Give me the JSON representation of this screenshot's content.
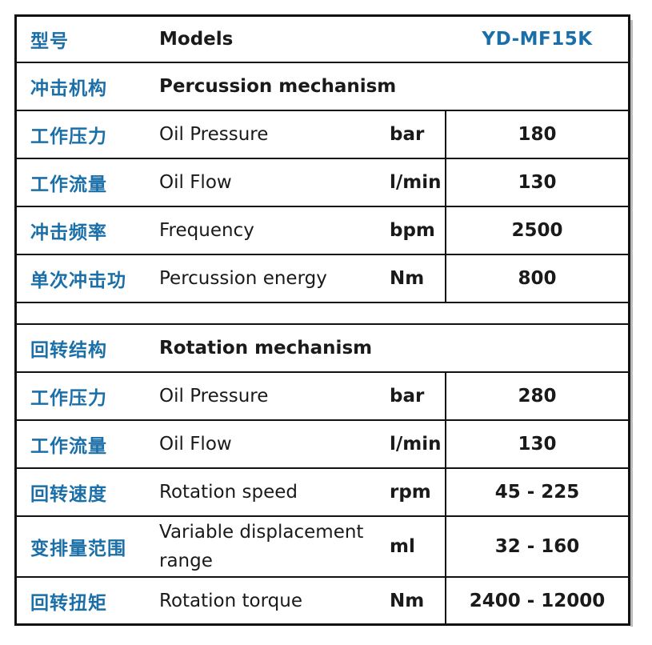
{
  "header": {
    "cn": "型号",
    "en": "Models",
    "model": "YD-MF15K"
  },
  "percussion": {
    "cn": "冲击机构",
    "en": "Percussion mechanism",
    "rows": [
      {
        "cn": "工作压力",
        "en": "Oil Pressure",
        "unit": "bar",
        "value": "180"
      },
      {
        "cn": "工作流量",
        "en": "Oil Flow",
        "unit": "l/min",
        "value": "130"
      },
      {
        "cn": "冲击频率",
        "en": "Frequency",
        "unit": "bpm",
        "value": "2500"
      },
      {
        "cn": "单次冲击功",
        "en": "Percussion energy",
        "unit": "Nm",
        "value": "800"
      }
    ]
  },
  "rotation": {
    "cn": "回转结构",
    "en": "Rotation mechanism",
    "rows": [
      {
        "cn": "工作压力",
        "en": "Oil Pressure",
        "unit": "bar",
        "value": "280"
      },
      {
        "cn": "工作流量",
        "en": "Oil Flow",
        "unit": "l/min",
        "value": "130"
      },
      {
        "cn": "回转速度",
        "en": "Rotation speed",
        "unit": "rpm",
        "value": "45 - 225"
      },
      {
        "cn": "变排量范围",
        "en_line1": "Variable displacement",
        "en_line2": "range",
        "unit": "ml",
        "value": "32 - 160"
      },
      {
        "cn": "回转扭矩",
        "en": "Rotation torque",
        "unit": "Nm",
        "value": "2400 - 12000"
      }
    ]
  }
}
